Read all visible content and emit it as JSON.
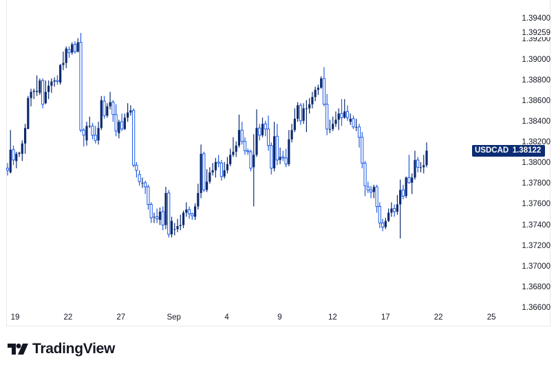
{
  "chart_data": {
    "type": "candlestick",
    "symbol": "USDCAD",
    "last_price": "1.38122",
    "high_marker": "1.39259",
    "ylim": [
      1.366,
      1.395
    ],
    "y_ticks": [
      "1.39400",
      "1.39200",
      "1.39000",
      "1.38800",
      "1.38600",
      "1.38400",
      "1.38200",
      "1.38000",
      "1.37800",
      "1.37600",
      "1.37400",
      "1.37200",
      "1.37000",
      "1.36800",
      "1.36600"
    ],
    "x_ticks": [
      "19",
      "22",
      "27",
      "Sep",
      "4",
      "9",
      "12",
      "17",
      "22",
      "25"
    ],
    "grid": false,
    "colors": {
      "up": "#0c2a6e",
      "down": "#1e5be6",
      "badge": "#0c2d74"
    },
    "ohlc": [
      [
        1.3795,
        1.38,
        1.3788,
        1.3793
      ],
      [
        1.3791,
        1.3832,
        1.379,
        1.3813
      ],
      [
        1.3813,
        1.3817,
        1.3798,
        1.3803
      ],
      [
        1.3802,
        1.3811,
        1.3795,
        1.3809
      ],
      [
        1.3809,
        1.3811,
        1.3806,
        1.381
      ],
      [
        1.3809,
        1.3822,
        1.3802,
        1.3819
      ],
      [
        1.3819,
        1.3838,
        1.3809,
        1.3834
      ],
      [
        1.3833,
        1.3865,
        1.3833,
        1.3863
      ],
      [
        1.3863,
        1.3872,
        1.3855,
        1.3869
      ],
      [
        1.3869,
        1.3872,
        1.3862,
        1.387
      ],
      [
        1.3869,
        1.3885,
        1.3865,
        1.387
      ],
      [
        1.3868,
        1.3882,
        1.3866,
        1.388
      ],
      [
        1.388,
        1.3882,
        1.3853,
        1.3857
      ],
      [
        1.3858,
        1.388,
        1.3857,
        1.3869
      ],
      [
        1.3869,
        1.388,
        1.3862,
        1.3875
      ],
      [
        1.3875,
        1.3882,
        1.3868,
        1.3879
      ],
      [
        1.3879,
        1.3883,
        1.3874,
        1.388
      ],
      [
        1.388,
        1.3885,
        1.3876,
        1.3879
      ],
      [
        1.3878,
        1.3896,
        1.3876,
        1.3895
      ],
      [
        1.3895,
        1.3908,
        1.389,
        1.3897
      ],
      [
        1.3897,
        1.3913,
        1.3892,
        1.3911
      ],
      [
        1.391,
        1.3913,
        1.3902,
        1.3907
      ],
      [
        1.3907,
        1.3917,
        1.3905,
        1.3915
      ],
      [
        1.3915,
        1.3918,
        1.3906,
        1.3908
      ],
      [
        1.3908,
        1.3921,
        1.3907,
        1.3917
      ],
      [
        1.3917,
        1.3926,
        1.383,
        1.3832
      ],
      [
        1.3832,
        1.3834,
        1.3816,
        1.3827
      ],
      [
        1.3822,
        1.384,
        1.3817,
        1.3836
      ],
      [
        1.3836,
        1.3845,
        1.3834,
        1.3836
      ],
      [
        1.3836,
        1.3839,
        1.3823,
        1.3827
      ],
      [
        1.3827,
        1.3836,
        1.3819,
        1.3822
      ],
      [
        1.3822,
        1.384,
        1.3818,
        1.3834
      ],
      [
        1.3834,
        1.3865,
        1.3832,
        1.3861
      ],
      [
        1.386,
        1.3865,
        1.3843,
        1.3846
      ],
      [
        1.3846,
        1.3858,
        1.3844,
        1.3855
      ],
      [
        1.3855,
        1.3869,
        1.3852,
        1.3859
      ],
      [
        1.3859,
        1.3861,
        1.384,
        1.3847
      ],
      [
        1.3847,
        1.3857,
        1.3826,
        1.3831
      ],
      [
        1.3829,
        1.3842,
        1.3824,
        1.384
      ],
      [
        1.384,
        1.3848,
        1.3831,
        1.3833
      ],
      [
        1.3833,
        1.3848,
        1.3832,
        1.3844
      ],
      [
        1.3844,
        1.3858,
        1.384,
        1.3849
      ],
      [
        1.3849,
        1.3856,
        1.3846,
        1.3851
      ],
      [
        1.3851,
        1.3853,
        1.3796,
        1.3798
      ],
      [
        1.3798,
        1.3801,
        1.3786,
        1.3793
      ],
      [
        1.3789,
        1.3793,
        1.3778,
        1.3782
      ],
      [
        1.3781,
        1.3786,
        1.3776,
        1.3781
      ],
      [
        1.3781,
        1.3783,
        1.377,
        1.3777
      ],
      [
        1.3777,
        1.3779,
        1.3755,
        1.376
      ],
      [
        1.376,
        1.3762,
        1.3742,
        1.3747
      ],
      [
        1.3748,
        1.3752,
        1.3742,
        1.3748
      ],
      [
        1.3748,
        1.3756,
        1.3742,
        1.3746
      ],
      [
        1.3745,
        1.3757,
        1.374,
        1.3753
      ],
      [
        1.3753,
        1.3758,
        1.3735,
        1.374
      ],
      [
        1.374,
        1.3777,
        1.3736,
        1.3771
      ],
      [
        1.3771,
        1.3774,
        1.3728,
        1.3731
      ],
      [
        1.3731,
        1.3748,
        1.3728,
        1.3744
      ],
      [
        1.3736,
        1.3742,
        1.373,
        1.3736
      ],
      [
        1.3736,
        1.3746,
        1.3733,
        1.3739
      ],
      [
        1.3739,
        1.375,
        1.3735,
        1.374
      ],
      [
        1.374,
        1.3754,
        1.3737,
        1.3752
      ],
      [
        1.3752,
        1.3762,
        1.3748,
        1.3755
      ],
      [
        1.3755,
        1.3758,
        1.3746,
        1.3751
      ],
      [
        1.3751,
        1.3752,
        1.3745,
        1.3749
      ],
      [
        1.3748,
        1.3761,
        1.3745,
        1.3758
      ],
      [
        1.3758,
        1.378,
        1.3755,
        1.3771
      ],
      [
        1.3771,
        1.3818,
        1.3766,
        1.3809
      ],
      [
        1.3809,
        1.3811,
        1.3772,
        1.3774
      ],
      [
        1.3774,
        1.3794,
        1.3772,
        1.3782
      ],
      [
        1.3782,
        1.3796,
        1.378,
        1.3791
      ],
      [
        1.3791,
        1.38,
        1.3788,
        1.3793
      ],
      [
        1.3793,
        1.3805,
        1.3786,
        1.3801
      ],
      [
        1.3801,
        1.3808,
        1.3796,
        1.38
      ],
      [
        1.38,
        1.3803,
        1.3783,
        1.3787
      ],
      [
        1.3787,
        1.3801,
        1.3785,
        1.3793
      ],
      [
        1.3793,
        1.3806,
        1.379,
        1.3799
      ],
      [
        1.3799,
        1.3814,
        1.3797,
        1.3808
      ],
      [
        1.3808,
        1.3825,
        1.3806,
        1.3811
      ],
      [
        1.3811,
        1.3821,
        1.3806,
        1.3817
      ],
      [
        1.3817,
        1.3847,
        1.3815,
        1.3832
      ],
      [
        1.3832,
        1.384,
        1.3818,
        1.3821
      ],
      [
        1.3821,
        1.3825,
        1.3808,
        1.3812
      ],
      [
        1.3812,
        1.3814,
        1.3808,
        1.3811
      ],
      [
        1.3811,
        1.3813,
        1.3792,
        1.3795
      ],
      [
        1.3796,
        1.3828,
        1.3758,
        1.3808
      ],
      [
        1.3808,
        1.3852,
        1.3806,
        1.3834
      ],
      [
        1.3834,
        1.3838,
        1.3822,
        1.3827
      ],
      [
        1.3827,
        1.3844,
        1.3825,
        1.3838
      ],
      [
        1.3838,
        1.3841,
        1.3826,
        1.3833
      ],
      [
        1.3833,
        1.3846,
        1.3812,
        1.3817
      ],
      [
        1.3817,
        1.382,
        1.3789,
        1.3795
      ],
      [
        1.3795,
        1.384,
        1.3792,
        1.3826
      ],
      [
        1.3826,
        1.3838,
        1.3798,
        1.3803
      ],
      [
        1.3803,
        1.3815,
        1.3799,
        1.3806
      ],
      [
        1.3806,
        1.3812,
        1.3802,
        1.3805
      ],
      [
        1.3805,
        1.3814,
        1.3796,
        1.3799
      ],
      [
        1.3799,
        1.3832,
        1.3797,
        1.3823
      ],
      [
        1.3823,
        1.3838,
        1.382,
        1.3832
      ],
      [
        1.3832,
        1.3853,
        1.383,
        1.3843
      ],
      [
        1.3843,
        1.3859,
        1.384,
        1.3856
      ],
      [
        1.3856,
        1.3858,
        1.3837,
        1.3841
      ],
      [
        1.3841,
        1.3858,
        1.3838,
        1.3853
      ],
      [
        1.3853,
        1.3861,
        1.383,
        1.3853
      ],
      [
        1.3853,
        1.3863,
        1.3848,
        1.3857
      ],
      [
        1.3857,
        1.3869,
        1.3853,
        1.3864
      ],
      [
        1.3864,
        1.3874,
        1.386,
        1.3871
      ],
      [
        1.3871,
        1.3876,
        1.3866,
        1.3873
      ],
      [
        1.3873,
        1.3884,
        1.3872,
        1.3882
      ],
      [
        1.3882,
        1.3893,
        1.3855,
        1.3857
      ],
      [
        1.3857,
        1.3867,
        1.3827,
        1.3833
      ],
      [
        1.3833,
        1.3842,
        1.3829,
        1.3833
      ],
      [
        1.3833,
        1.3845,
        1.3831,
        1.3838
      ],
      [
        1.3838,
        1.385,
        1.3835,
        1.3842
      ],
      [
        1.3842,
        1.3853,
        1.3832,
        1.3848
      ],
      [
        1.3848,
        1.3862,
        1.3836,
        1.3844
      ],
      [
        1.3844,
        1.3862,
        1.3843,
        1.385
      ],
      [
        1.385,
        1.3856,
        1.3841,
        1.3844
      ],
      [
        1.384,
        1.3848,
        1.3837,
        1.3843
      ],
      [
        1.3843,
        1.3846,
        1.3833,
        1.3835
      ],
      [
        1.3835,
        1.3843,
        1.3831,
        1.3835
      ],
      [
        1.3835,
        1.3838,
        1.3815,
        1.3825
      ],
      [
        1.3825,
        1.383,
        1.3795,
        1.38
      ],
      [
        1.38,
        1.3802,
        1.3768,
        1.3778
      ],
      [
        1.3777,
        1.3782,
        1.3771,
        1.3774
      ],
      [
        1.3774,
        1.3778,
        1.3766,
        1.3772
      ],
      [
        1.3772,
        1.3779,
        1.3766,
        1.3777
      ],
      [
        1.3777,
        1.3779,
        1.3752,
        1.3758
      ],
      [
        1.3758,
        1.3762,
        1.3737,
        1.3742
      ],
      [
        1.3742,
        1.3746,
        1.3734,
        1.3738
      ],
      [
        1.3738,
        1.3747,
        1.3736,
        1.3744
      ],
      [
        1.3744,
        1.3756,
        1.3743,
        1.3752
      ],
      [
        1.3752,
        1.3762,
        1.3748,
        1.3756
      ],
      [
        1.3756,
        1.376,
        1.3748,
        1.3753
      ],
      [
        1.3753,
        1.3769,
        1.375,
        1.376
      ],
      [
        1.376,
        1.3784,
        1.3727,
        1.3774
      ],
      [
        1.3774,
        1.3779,
        1.3765,
        1.3768
      ],
      [
        1.3768,
        1.3787,
        1.3766,
        1.3786
      ],
      [
        1.3786,
        1.3808,
        1.378,
        1.3781
      ],
      [
        1.3781,
        1.379,
        1.377,
        1.3786
      ],
      [
        1.3786,
        1.3812,
        1.3784,
        1.3803
      ],
      [
        1.3803,
        1.3806,
        1.3791,
        1.3796
      ],
      [
        1.3796,
        1.3801,
        1.3791,
        1.3796
      ],
      [
        1.3796,
        1.3808,
        1.379,
        1.3798
      ],
      [
        1.3798,
        1.382,
        1.3796,
        1.3812
      ]
    ]
  },
  "branding": {
    "logo_text": "TradingView"
  }
}
